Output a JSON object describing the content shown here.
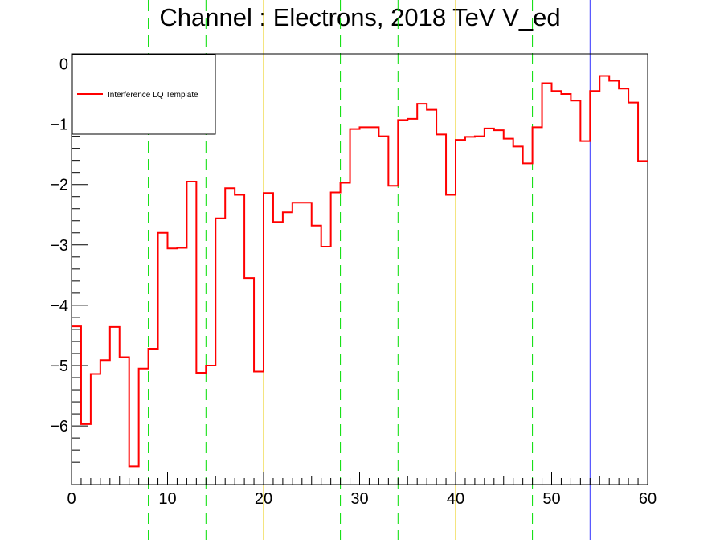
{
  "chart_data": {
    "type": "line",
    "title": "Channel : Electrons, 2018 TeV V_ed",
    "xlabel": "",
    "ylabel": "",
    "xlim": [
      0,
      60
    ],
    "ylim": [
      -7,
      0.15
    ],
    "x_ticks": [
      0,
      10,
      20,
      30,
      40,
      50,
      60
    ],
    "y_ticks": [
      0,
      -1,
      -2,
      -3,
      -4,
      -5,
      -6
    ],
    "x_tick_labels": [
      "0",
      "10",
      "20",
      "30",
      "40",
      "50",
      "60"
    ],
    "y_tick_labels": [
      "0",
      "−1",
      "−2",
      "−3",
      "−4",
      "−5",
      "−6"
    ],
    "bin_width": 1,
    "series": [
      {
        "name": "Interference LQ Template",
        "color": "#ff0000",
        "style": "step",
        "values": [
          -4.35,
          -5.97,
          -5.14,
          -4.91,
          -4.36,
          -4.86,
          -6.67,
          -5.05,
          -4.72,
          -2.8,
          -3.06,
          -3.05,
          -1.95,
          -5.12,
          -5.0,
          -2.56,
          -2.06,
          -2.17,
          -3.55,
          -5.1,
          -2.14,
          -2.62,
          -2.46,
          -2.3,
          -2.3,
          -2.68,
          -3.03,
          -2.13,
          -1.97,
          -1.08,
          -1.05,
          -1.05,
          -1.2,
          -2.02,
          -0.93,
          -0.91,
          -0.66,
          -0.76,
          -1.17,
          -2.17,
          -1.26,
          -1.21,
          -1.2,
          -1.07,
          -1.1,
          -1.24,
          -1.37,
          -1.65,
          -1.05,
          -0.32,
          -0.45,
          -0.5,
          -0.61,
          -1.28,
          -0.45,
          -0.2,
          -0.28,
          -0.41,
          -0.64,
          -1.61
        ]
      }
    ],
    "vertical_lines": [
      {
        "x": 8,
        "color": "#00dd00",
        "style": "dashed"
      },
      {
        "x": 14,
        "color": "#00dd00",
        "style": "dashed"
      },
      {
        "x": 20,
        "color": "#e8c800",
        "style": "solid"
      },
      {
        "x": 28,
        "color": "#00dd00",
        "style": "dashed"
      },
      {
        "x": 34,
        "color": "#00dd00",
        "style": "dashed"
      },
      {
        "x": 40,
        "color": "#e8c800",
        "style": "solid"
      },
      {
        "x": 48,
        "color": "#00dd00",
        "style": "dashed"
      },
      {
        "x": 54,
        "color": "#3030ff",
        "style": "solid"
      }
    ],
    "grid": false,
    "legend_position": "top-left"
  }
}
